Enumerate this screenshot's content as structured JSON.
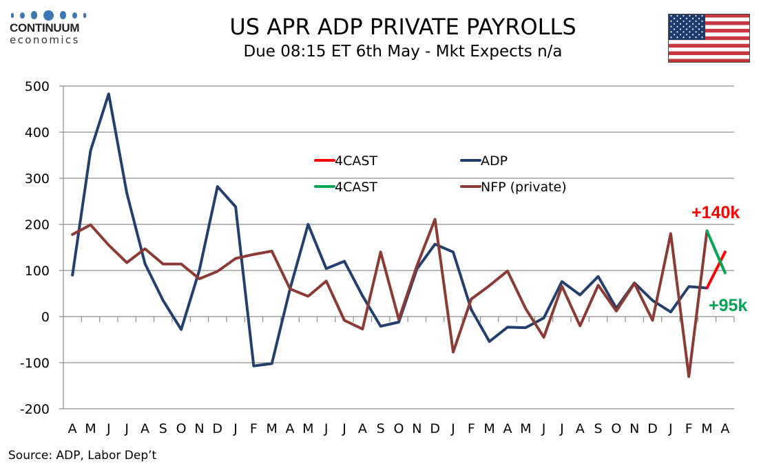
{
  "logo": {
    "name": "CONTINUUM",
    "sub": "economics"
  },
  "header": {
    "title": "US APR ADP PRIVATE PAYROLLS",
    "subtitle": "Due 08:15 ET 6th May - Mkt Expects n/a",
    "flag_icon": "us-flag-icon"
  },
  "source": "Source: ADP, Labor Dep’t",
  "colors": {
    "adp": "#243f6e",
    "nfp": "#8b3a34",
    "forecast_red": "#ff0000",
    "forecast_green": "#00a651",
    "grid": "#8c8c8c"
  },
  "chart_data": {
    "type": "line",
    "title": "US APR ADP PRIVATE PAYROLLS",
    "subtitle": "Due 08:15 ET 6th May - Mkt Expects n/a",
    "xlabel": "",
    "ylabel": "",
    "ylim": [
      -200,
      500
    ],
    "yticks": [
      500,
      400,
      300,
      200,
      100,
      0,
      -100,
      -200
    ],
    "grid": true,
    "legend_position": "upper-center",
    "categories": [
      "A",
      "M",
      "J",
      "J",
      "A",
      "S",
      "O",
      "N",
      "D",
      "J",
      "F",
      "M",
      "A",
      "M",
      "J",
      "J",
      "A",
      "S",
      "O",
      "N",
      "D",
      "J",
      "F",
      "M",
      "A",
      "M",
      "J",
      "J",
      "A",
      "S",
      "O",
      "N",
      "D",
      "J",
      "F",
      "M",
      "A"
    ],
    "series": [
      {
        "name": "ADP",
        "color_key": "adp",
        "values": [
          90,
          360,
          483,
          268,
          115,
          35,
          -28,
          100,
          282,
          238,
          -107,
          -102,
          60,
          200,
          104,
          120,
          45,
          -21,
          -12,
          103,
          157,
          140,
          15,
          -54,
          -23,
          -24,
          -3,
          76,
          47,
          87,
          18,
          73,
          35,
          10,
          65,
          62,
          null
        ]
      },
      {
        "name": "NFP (private)",
        "color_key": "nfp",
        "values": [
          178,
          199,
          155,
          117,
          147,
          114,
          114,
          82,
          98,
          126,
          135,
          142,
          60,
          44,
          77,
          -8,
          -27,
          140,
          -6,
          110,
          211,
          -77,
          38,
          67,
          99,
          17,
          -45,
          66,
          -20,
          68,
          12,
          72,
          -8,
          180,
          -130,
          186,
          null
        ]
      },
      {
        "name": "4CAST",
        "color_key": "forecast_red",
        "values": [
          null,
          null,
          null,
          null,
          null,
          null,
          null,
          null,
          null,
          null,
          null,
          null,
          null,
          null,
          null,
          null,
          null,
          null,
          null,
          null,
          null,
          null,
          null,
          null,
          null,
          null,
          null,
          null,
          null,
          null,
          null,
          null,
          null,
          null,
          null,
          62,
          140
        ]
      },
      {
        "name": "4CAST",
        "color_key": "forecast_green",
        "values": [
          null,
          null,
          null,
          null,
          null,
          null,
          null,
          null,
          null,
          null,
          null,
          null,
          null,
          null,
          null,
          null,
          null,
          null,
          null,
          null,
          null,
          null,
          null,
          null,
          null,
          null,
          null,
          null,
          null,
          null,
          null,
          null,
          null,
          null,
          null,
          186,
          95
        ]
      }
    ],
    "legend": [
      {
        "label": "4CAST",
        "color_key": "forecast_red"
      },
      {
        "label": "ADP",
        "color_key": "adp"
      },
      {
        "label": "4CAST",
        "color_key": "forecast_green"
      },
      {
        "label": "NFP (private)",
        "color_key": "nfp"
      }
    ],
    "annotations": [
      {
        "text": "+140k",
        "color_key": "forecast_red",
        "series": "4CAST ADP"
      },
      {
        "text": "+95k",
        "color_key": "forecast_green",
        "series": "4CAST NFP"
      }
    ]
  }
}
